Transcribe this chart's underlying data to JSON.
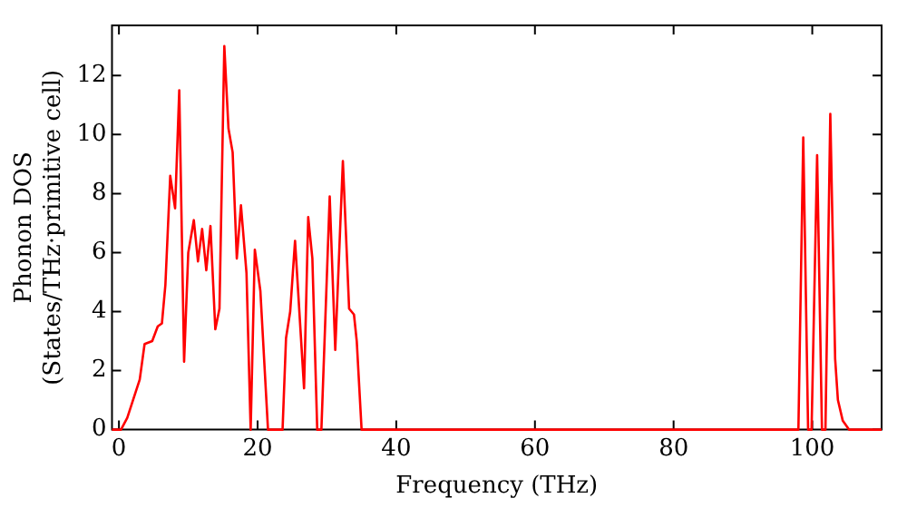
{
  "chart_data": {
    "type": "line",
    "xlabel": "Frequency (THz)",
    "ylabel": "Phonon DOS\n(States/THz·primitive cell)",
    "xlim": [
      -1,
      110
    ],
    "ylim": [
      0,
      13.7
    ],
    "xticks": [
      0,
      20,
      40,
      60,
      80,
      100
    ],
    "yticks": [
      0,
      2,
      4,
      6,
      8,
      10,
      12
    ],
    "grid": false,
    "legend": false,
    "marker": "none",
    "line_style": "solid",
    "series": [
      {
        "color": "#ff0000",
        "x": [
          -1,
          0.3,
          1.2,
          3.0,
          3.7,
          4.8,
          5.6,
          6.2,
          6.7,
          7.4,
          8.1,
          8.7,
          9.4,
          10.0,
          10.8,
          11.4,
          12.0,
          12.6,
          13.2,
          13.9,
          14.5,
          15.2,
          15.8,
          16.4,
          17.0,
          17.6,
          18.4,
          19.0,
          19.6,
          20.4,
          21.5,
          23.6,
          24.1,
          24.7,
          25.4,
          26.7,
          27.3,
          27.9,
          28.6,
          29.2,
          30.4,
          31.2,
          32.3,
          33.2,
          33.9,
          34.3,
          35.0,
          98.0,
          98.7,
          99.4,
          99.9,
          100.7,
          101.4,
          101.9,
          102.6,
          103.3,
          103.7,
          104.4,
          105.3,
          110
        ],
        "values": [
          0,
          0,
          0.4,
          1.7,
          2.9,
          3.0,
          3.5,
          3.6,
          4.9,
          8.6,
          7.5,
          11.5,
          2.3,
          6.0,
          7.1,
          5.7,
          6.8,
          5.4,
          6.9,
          3.4,
          4.1,
          13.0,
          10.2,
          9.4,
          5.8,
          7.6,
          5.3,
          0,
          6.1,
          4.7,
          0,
          0,
          3.1,
          4.0,
          6.4,
          1.4,
          7.2,
          5.8,
          0,
          0,
          7.9,
          2.7,
          9.1,
          4.1,
          3.9,
          3.0,
          0,
          0,
          9.9,
          0,
          0,
          9.3,
          0,
          0,
          10.7,
          2.4,
          1.0,
          0.3,
          0,
          0
        ]
      }
    ]
  }
}
